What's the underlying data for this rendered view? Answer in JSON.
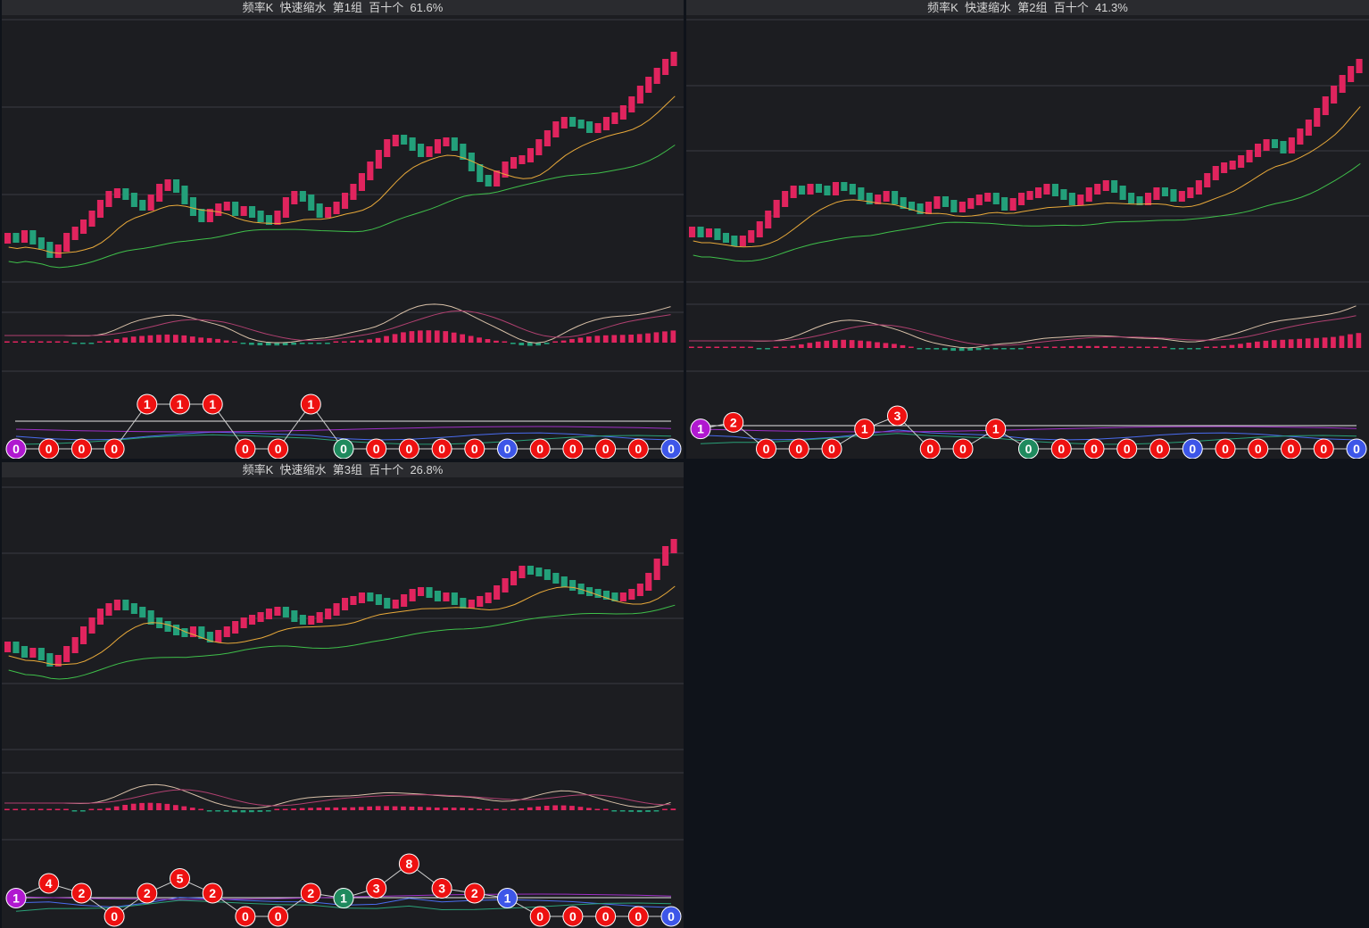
{
  "colors": {
    "up": "#e0245e",
    "down": "#23a07a",
    "ma_fast": "#e8a93a",
    "ma_slow": "#3fbf4a",
    "macd_fast": "#d8c0a8",
    "macd_slow": "#b04070",
    "grid": "#3a3c42",
    "ball_red": "#ee1111",
    "ball_green": "#1f8a5e",
    "ball_blue": "#3d56e8",
    "ball_purple": "#b018d0"
  },
  "panels": [
    {
      "title": "频率K  快速缩水  第1组  百十个  61.6%",
      "chart_data": {
        "type": "line",
        "candles_trend": [
          265,
          268,
          262,
          270,
          275,
          285,
          278,
          265,
          258,
          250,
          240,
          228,
          218,
          215,
          220,
          228,
          232,
          222,
          210,
          205,
          212,
          225,
          238,
          245,
          238,
          232,
          230,
          238,
          235,
          240,
          245,
          248,
          240,
          225,
          218,
          222,
          232,
          240,
          236,
          230,
          220,
          210,
          198,
          185,
          172,
          160,
          155,
          158,
          165,
          172,
          168,
          160,
          158,
          165,
          175,
          188,
          200,
          205,
          195,
          185,
          180,
          178,
          170,
          160,
          150,
          140,
          135,
          138,
          140,
          145,
          142,
          135,
          130,
          122,
          112,
          100,
          90,
          80,
          70,
          62
        ],
        "ball_values": [
          0,
          0,
          0,
          0,
          1,
          1,
          1,
          0,
          0,
          1,
          0,
          0,
          0,
          0,
          0,
          0,
          0,
          0,
          0,
          0,
          0
        ],
        "ball_colors": [
          "purple",
          "red",
          "red",
          "red",
          "red",
          "red",
          "red",
          "red",
          "red",
          "red",
          "green",
          "red",
          "red",
          "red",
          "red",
          "blue",
          "red",
          "red",
          "red",
          "red",
          "blue"
        ]
      }
    },
    {
      "title": "频率K  快速缩水  第2组  百十个  41.3%",
      "chart_data": {
        "type": "line",
        "candles_trend": [
          258,
          262,
          260,
          265,
          268,
          272,
          268,
          262,
          252,
          240,
          228,
          218,
          212,
          214,
          210,
          212,
          215,
          208,
          210,
          214,
          220,
          225,
          222,
          218,
          225,
          230,
          232,
          236,
          230,
          224,
          228,
          234,
          230,
          226,
          222,
          220,
          225,
          232,
          226,
          220,
          218,
          214,
          210,
          216,
          220,
          226,
          222,
          214,
          210,
          206,
          212,
          220,
          224,
          226,
          220,
          214,
          216,
          222,
          218,
          214,
          206,
          198,
          190,
          186,
          184,
          178,
          172,
          165,
          160,
          162,
          168,
          158,
          148,
          138,
          125,
          112,
          100,
          88,
          78,
          70
        ],
        "ball_values": [
          1,
          2,
          0,
          0,
          0,
          1,
          3,
          0,
          0,
          1,
          0,
          0,
          0,
          0,
          0,
          0,
          0,
          0,
          0,
          0,
          0
        ],
        "ball_colors": [
          "purple",
          "red",
          "red",
          "red",
          "red",
          "red",
          "red",
          "red",
          "red",
          "red",
          "green",
          "red",
          "red",
          "red",
          "red",
          "blue",
          "red",
          "red",
          "red",
          "red",
          "blue"
        ]
      }
    },
    {
      "title": "频率K  快速缩水  第3组  百十个  26.8%",
      "chart_data": {
        "type": "line",
        "candles_trend": [
          205,
          210,
          215,
          212,
          218,
          225,
          220,
          210,
          200,
          188,
          178,
          168,
          162,
          158,
          162,
          166,
          170,
          178,
          182,
          186,
          190,
          192,
          188,
          194,
          198,
          192,
          188,
          182,
          178,
          175,
          172,
          168,
          166,
          170,
          175,
          178,
          176,
          172,
          168,
          162,
          156,
          154,
          150,
          152,
          156,
          160,
          158,
          152,
          146,
          144,
          148,
          152,
          150,
          156,
          160,
          158,
          154,
          150,
          142,
          134,
          126,
          120,
          122,
          124,
          128,
          132,
          136,
          140,
          144,
          146,
          148,
          150,
          152,
          150,
          146,
          140,
          128,
          112,
          98,
          90
        ],
        "ball_values": [
          1,
          4,
          2,
          0,
          2,
          5,
          2,
          0,
          0,
          2,
          1,
          3,
          8,
          3,
          2,
          1,
          0,
          0,
          0,
          0,
          0
        ],
        "ball_colors": [
          "purple",
          "red",
          "red",
          "red",
          "red",
          "red",
          "red",
          "red",
          "red",
          "red",
          "green",
          "red",
          "red",
          "red",
          "red",
          "blue",
          "red",
          "red",
          "red",
          "red",
          "blue"
        ]
      }
    }
  ]
}
